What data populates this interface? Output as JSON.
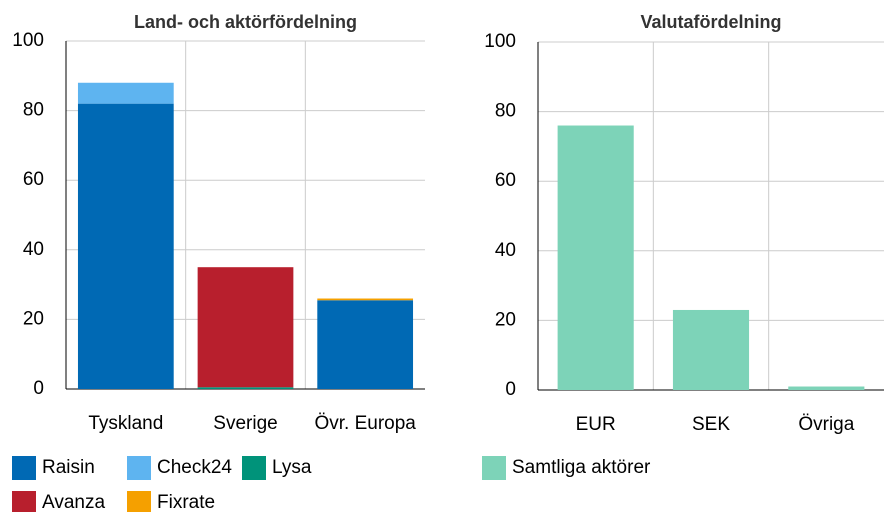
{
  "chart_data": [
    {
      "type": "stacked_bar",
      "title": "Land- och aktörfördelning",
      "categories": [
        "Tyskland",
        "Sverige",
        "Övr. Europa"
      ],
      "series": [
        {
          "name": "Raisin",
          "color": "#0069b4",
          "values": [
            82,
            0,
            25.5
          ]
        },
        {
          "name": "Check24",
          "color": "#5eb4f0",
          "values": [
            6,
            0,
            0
          ]
        },
        {
          "name": "Lysa",
          "color": "#00937a",
          "values": [
            0,
            0.5,
            0
          ]
        },
        {
          "name": "Avanza",
          "color": "#b81f2d",
          "values": [
            0,
            34.5,
            0
          ]
        },
        {
          "name": "Fixrate",
          "color": "#f5a000",
          "values": [
            0,
            0,
            0.5
          ]
        }
      ],
      "ylim": [
        0,
        100
      ],
      "yticks": [
        0,
        20,
        40,
        60,
        80,
        100
      ],
      "grid": true
    },
    {
      "type": "bar",
      "title": "Valutafördelning",
      "categories": [
        "EUR",
        "SEK",
        "Övriga"
      ],
      "series": [
        {
          "name": "Samtliga aktörer",
          "color": "#7dd3b8",
          "values": [
            76,
            23,
            1
          ]
        }
      ],
      "ylim": [
        0,
        100
      ],
      "yticks": [
        0,
        20,
        40,
        60,
        80,
        100
      ],
      "grid": true
    }
  ]
}
